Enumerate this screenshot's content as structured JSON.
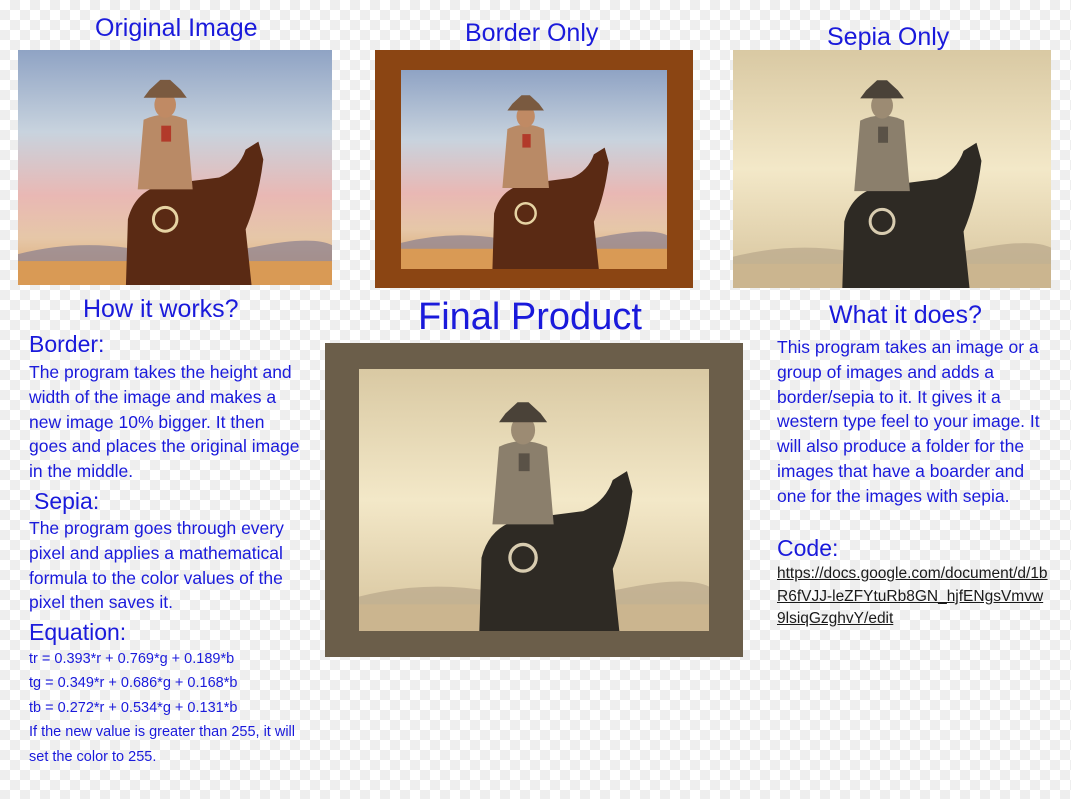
{
  "panels": {
    "original": {
      "title": "Original Image"
    },
    "border": {
      "title": "Border Only"
    },
    "sepia": {
      "title": "Sepia Only"
    },
    "final": {
      "title": "Final Product"
    }
  },
  "how_it_works": {
    "title": "How it works?",
    "border_heading": "Border:",
    "border_text": "The program takes the height and width of the image and makes a new image 10% bigger. It then goes and places the original image in the middle.",
    "sepia_heading": "Sepia:",
    "sepia_text": "The program goes through every pixel and applies a mathematical formula to the color values of the pixel then saves it.",
    "equation_heading": "Equation:",
    "equations": [
      "tr = 0.393*r + 0.769*g + 0.189*b",
      "tg = 0.349*r + 0.686*g + 0.168*b",
      "tb = 0.272*r + 0.534*g + 0.131*b"
    ],
    "equation_note": "If the new value is greater than 255, it will set the color to 255."
  },
  "what_it_does": {
    "title": "What it does?",
    "text": "This program takes an image or a group of images and adds a border/sepia to it. It gives it a western type feel to your image. It will also produce a folder for the images that have a boarder and one for the images with sepia.",
    "code_heading": "Code:",
    "code_link": "https://docs.google.com/document/d/1bR6fVJJ-leZFYtuRb8GN_hjfENgsVmvw9lsiqGzghvY/edit"
  },
  "colors": {
    "text_blue": "#1a1adb",
    "border_brown": "#8b4513",
    "final_frame": "#6b5e4a"
  }
}
